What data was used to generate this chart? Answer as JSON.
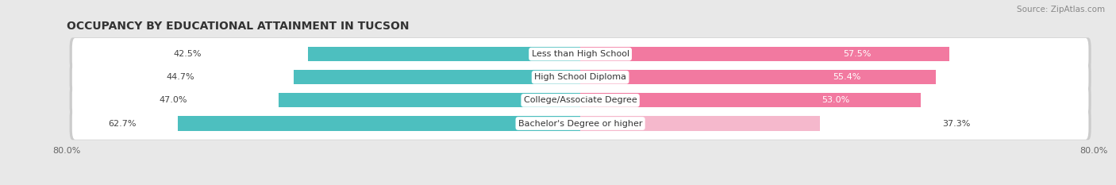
{
  "title": "OCCUPANCY BY EDUCATIONAL ATTAINMENT IN TUCSON",
  "source": "Source: ZipAtlas.com",
  "categories": [
    "Less than High School",
    "High School Diploma",
    "College/Associate Degree",
    "Bachelor's Degree or higher"
  ],
  "owner_values": [
    42.5,
    44.7,
    47.0,
    62.7
  ],
  "renter_values": [
    57.5,
    55.4,
    53.0,
    37.3
  ],
  "owner_color": "#4dbfbf",
  "renter_color_bright": "#f279a0",
  "renter_color_light": "#f5b8cc",
  "axis_limit": 80.0,
  "bar_height": 0.62,
  "background_color": "#e8e8e8",
  "title_fontsize": 10,
  "source_fontsize": 7.5,
  "value_fontsize": 8,
  "cat_fontsize": 8,
  "tick_fontsize": 8,
  "legend_fontsize": 8
}
